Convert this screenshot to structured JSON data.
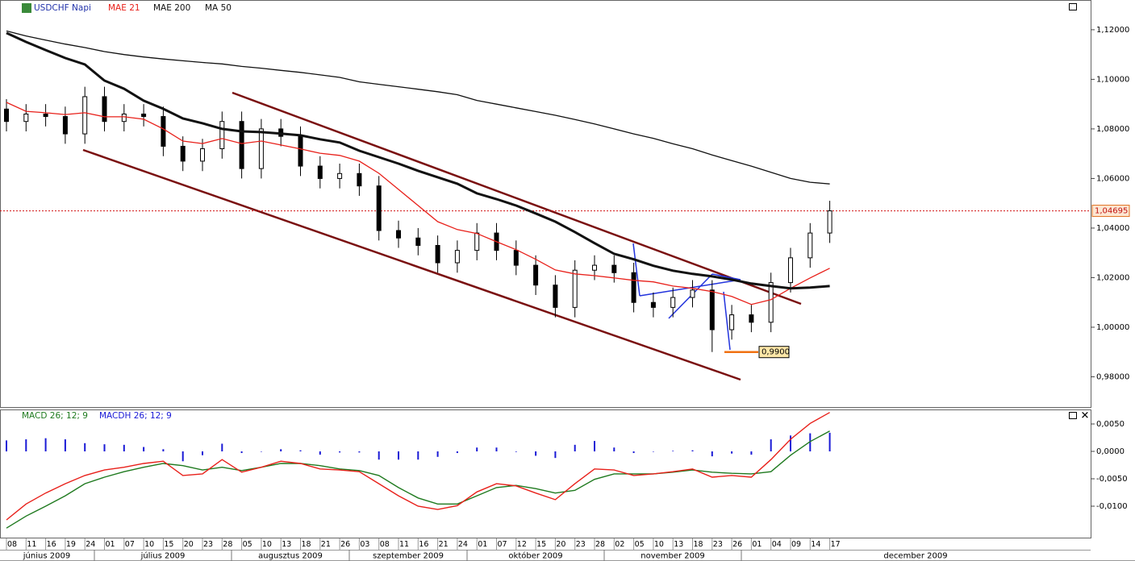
{
  "chart_data": [
    {
      "type": "candlestick",
      "title": "USDCHF Napi",
      "open": [
        1.088,
        1.083,
        1.086,
        1.085,
        1.078,
        1.093,
        1.083,
        1.086,
        1.085,
        1.073,
        1.067,
        1.072,
        1.083,
        1.064,
        1.08,
        1.077,
        1.065,
        1.06,
        1.062,
        1.057,
        1.039,
        1.036,
        1.033,
        1.026,
        1.031,
        1.038,
        1.031,
        1.025,
        1.017,
        1.008,
        1.023,
        1.025,
        1.022,
        1.01,
        1.008,
        1.012,
        1.015,
        0.999,
        1.005,
        1.002,
        1.018,
        1.028,
        1.038
      ],
      "high": [
        1.092,
        1.09,
        1.09,
        1.089,
        1.097,
        1.097,
        1.09,
        1.09,
        1.089,
        1.077,
        1.076,
        1.087,
        1.087,
        1.084,
        1.084,
        1.081,
        1.069,
        1.066,
        1.066,
        1.061,
        1.043,
        1.04,
        1.037,
        1.035,
        1.042,
        1.042,
        1.035,
        1.029,
        1.021,
        1.027,
        1.029,
        1.029,
        1.026,
        1.014,
        1.016,
        1.019,
        1.019,
        1.009,
        1.009,
        1.022,
        1.032,
        1.042,
        1.051
      ],
      "low": [
        1.079,
        1.079,
        1.081,
        1.074,
        1.074,
        1.079,
        1.079,
        1.081,
        1.069,
        1.063,
        1.063,
        1.068,
        1.06,
        1.06,
        1.073,
        1.061,
        1.056,
        1.056,
        1.053,
        1.035,
        1.032,
        1.029,
        1.022,
        1.022,
        1.027,
        1.027,
        1.021,
        1.013,
        1.004,
        1.004,
        1.019,
        1.018,
        1.006,
        1.004,
        1.004,
        1.008,
        0.99,
        0.995,
        0.998,
        0.998,
        1.014,
        1.024,
        1.034
      ],
      "close": [
        1.083,
        1.086,
        1.085,
        1.078,
        1.093,
        1.083,
        1.086,
        1.085,
        1.073,
        1.067,
        1.072,
        1.083,
        1.064,
        1.08,
        1.077,
        1.065,
        1.06,
        1.062,
        1.057,
        1.039,
        1.036,
        1.033,
        1.026,
        1.031,
        1.038,
        1.031,
        1.025,
        1.017,
        1.008,
        1.023,
        1.025,
        1.022,
        1.01,
        1.008,
        1.012,
        1.015,
        0.999,
        1.005,
        1.002,
        1.018,
        1.028,
        1.038,
        1.04695
      ],
      "series": [
        {
          "name": "MAE 21",
          "color": "#e8201a",
          "width": 1.3,
          "values": [
            1.0907,
            1.0871,
            1.0865,
            1.0858,
            1.0865,
            1.0849,
            1.0849,
            1.0839,
            1.08,
            1.0751,
            1.0741,
            1.0761,
            1.0741,
            1.0751,
            1.0735,
            1.0719,
            1.0702,
            1.0693,
            1.067,
            1.0621,
            1.0556,
            1.0491,
            1.0426,
            1.0394,
            1.0378,
            1.0345,
            1.0313,
            1.0274,
            1.0231,
            1.0215,
            1.0208,
            1.0199,
            1.0189,
            1.0183,
            1.0166,
            1.0157,
            1.0144,
            1.0124,
            1.0092,
            1.0111,
            1.0157,
            1.0199,
            1.0238
          ]
        },
        {
          "name": "MAE 200",
          "color": "#111111",
          "width": 1.3,
          "values": [
            1.1195,
            1.1175,
            1.1158,
            1.1142,
            1.1128,
            1.1112,
            1.11,
            1.109,
            1.1082,
            1.1075,
            1.1068,
            1.1062,
            1.1052,
            1.1045,
            1.1036,
            1.1028,
            1.1018,
            1.1008,
            1.099,
            1.098,
            1.097,
            1.096,
            1.095,
            1.0938,
            1.0915,
            1.09,
            1.0885,
            1.087,
            1.0855,
            1.0838,
            1.082,
            1.08,
            1.078,
            1.0762,
            1.074,
            1.072,
            1.0695,
            1.0672,
            1.065,
            1.0625,
            1.06,
            1.0585,
            1.0578
          ]
        },
        {
          "name": "MA 50",
          "color": "#111111",
          "width": 3,
          "values": [
            1.1187,
            1.1151,
            1.1118,
            1.1086,
            1.106,
            1.0995,
            1.0962,
            1.0914,
            1.0881,
            1.0842,
            1.0823,
            1.08,
            1.079,
            1.0787,
            1.0781,
            1.0774,
            1.0758,
            1.0745,
            1.0712,
            1.0686,
            1.066,
            1.0631,
            1.0605,
            1.0579,
            1.054,
            1.0517,
            1.0491,
            1.0459,
            1.0426,
            1.0384,
            1.0339,
            1.0296,
            1.0274,
            1.0248,
            1.0228,
            1.0215,
            1.0205,
            1.0192,
            1.0176,
            1.0166,
            1.0157,
            1.016,
            1.0166
          ]
        }
      ],
      "ylim": [
        0.9678,
        1.132
      ],
      "yticks": [
        {
          "value": 0.98,
          "label": "0,98000"
        },
        {
          "value": 1.0,
          "label": "1,00000"
        },
        {
          "value": 1.02,
          "label": "1,02000"
        },
        {
          "value": 1.04,
          "label": "1,04000"
        },
        {
          "value": 1.06,
          "label": "1,06000"
        },
        {
          "value": 1.08,
          "label": "1,08000"
        },
        {
          "value": 1.1,
          "label": "1,10000"
        },
        {
          "value": 1.12,
          "label": "1,12000"
        }
      ],
      "last_price": {
        "value": 1.04695,
        "label": "1,04695"
      },
      "low_mark": {
        "value": 0.99,
        "label": "0,9900"
      }
    },
    {
      "type": "macd",
      "categories": [
        "08",
        "11",
        "16",
        "19",
        "24",
        "01",
        "07",
        "10",
        "15",
        "20",
        "23",
        "28",
        "05",
        "10",
        "13",
        "18",
        "21",
        "26",
        "03",
        "08",
        "11",
        "16",
        "21",
        "24",
        "01",
        "07",
        "12",
        "15",
        "20",
        "23",
        "28",
        "02",
        "05",
        "10",
        "13",
        "18",
        "23",
        "26",
        "01",
        "04",
        "09",
        "14",
        "17"
      ],
      "months": [
        "június 2009",
        "július 2009",
        "augusztus 2009",
        "szeptember 2009",
        "október 2009",
        "november 2009",
        "december 2009"
      ],
      "series": [
        {
          "name": "MACD 26; 12; 9",
          "type": "line",
          "color": "#1f7a1f",
          "values": [
            -0.014,
            -0.0118,
            -0.01,
            -0.0081,
            -0.0059,
            -0.0047,
            -0.0037,
            -0.0029,
            -0.0022,
            -0.0026,
            -0.0034,
            -0.0029,
            -0.0035,
            -0.0029,
            -0.0022,
            -0.0022,
            -0.0026,
            -0.0032,
            -0.0035,
            -0.0044,
            -0.0066,
            -0.0085,
            -0.0096,
            -0.0096,
            -0.0081,
            -0.0066,
            -0.0062,
            -0.0068,
            -0.0076,
            -0.0071,
            -0.0051,
            -0.0041,
            -0.0041,
            -0.0041,
            -0.0038,
            -0.0034,
            -0.0038,
            -0.004,
            -0.0041,
            -0.0037,
            -0.0007,
            0.0018,
            0.0037
          ]
        },
        {
          "type": "line",
          "color": "#e8201a",
          "values": [
            -0.0125,
            -0.0096,
            -0.0076,
            -0.0059,
            -0.0044,
            -0.0034,
            -0.0029,
            -0.0022,
            -0.0018,
            -0.0044,
            -0.0041,
            -0.0015,
            -0.0038,
            -0.0029,
            -0.0018,
            -0.0022,
            -0.0032,
            -0.0034,
            -0.0037,
            -0.0059,
            -0.0081,
            -0.01,
            -0.0106,
            -0.0099,
            -0.0074,
            -0.0059,
            -0.0063,
            -0.0076,
            -0.0088,
            -0.0059,
            -0.0032,
            -0.0034,
            -0.0044,
            -0.0041,
            -0.0037,
            -0.0032,
            -0.0047,
            -0.0044,
            -0.0047,
            -0.0015,
            0.0022,
            0.0051,
            0.0071
          ]
        },
        {
          "name": "MACDH 26; 12; 9",
          "type": "bar",
          "color": "#1a1ad6",
          "values": [
            0.002,
            0.0022,
            0.0024,
            0.0022,
            0.0015,
            0.0013,
            0.0012,
            0.0008,
            0.0004,
            -0.0018,
            -0.0007,
            0.0014,
            -0.0003,
            0,
            0.0004,
            0.0002,
            -0.0006,
            -0.0002,
            -0.0002,
            -0.0015,
            -0.0015,
            -0.0015,
            -0.001,
            -0.0003,
            0.0007,
            0.0007,
            -0.0001,
            -0.0008,
            -0.0012,
            0.0012,
            0.0019,
            0.0007,
            -0.0003,
            0,
            0.0001,
            0.0002,
            -0.0009,
            -0.0004,
            -0.0006,
            0.0022,
            0.0029,
            0.0033,
            0.0034
          ]
        }
      ],
      "ylim": [
        -0.01588,
        0.0075
      ],
      "yticks": [
        {
          "value": 0.005,
          "label": "0,0050"
        },
        {
          "value": 0,
          "label": "0,0000"
        },
        {
          "value": -0.005,
          "label": "-0,0050"
        },
        {
          "value": -0.01,
          "label": "-0,0100"
        }
      ]
    }
  ]
}
